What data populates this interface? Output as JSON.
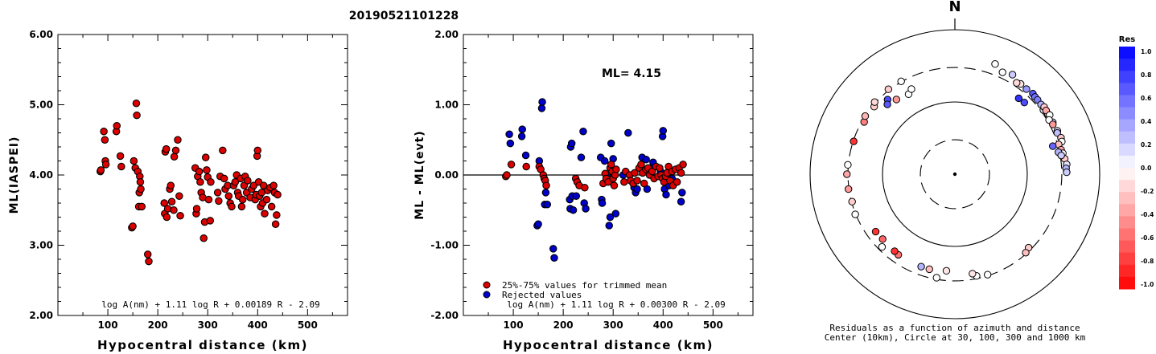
{
  "title": "20190521101228",
  "chart_data": [
    {
      "type": "scatter",
      "xlabel": "Hypocentral distance (km)",
      "ylabel": "ML(IASPEI)",
      "xlim": [
        0,
        580
      ],
      "ylim": [
        2.0,
        6.0
      ],
      "xticks": [
        "100",
        "200",
        "300",
        "400",
        "500"
      ],
      "yticks": [
        "2.00",
        "3.00",
        "4.00",
        "5.00",
        "6.00"
      ],
      "formula": "log A(nm) + 1.11 log R + 0.00189 R - 2.09",
      "marker_color": "#dd0000",
      "points": [
        [
          85,
          4.05
        ],
        [
          86,
          4.07
        ],
        [
          92,
          4.62
        ],
        [
          94,
          4.5
        ],
        [
          95,
          4.2
        ],
        [
          96,
          4.15
        ],
        [
          117,
          4.62
        ],
        [
          118,
          4.7
        ],
        [
          125,
          4.27
        ],
        [
          127,
          4.12
        ],
        [
          148,
          3.25
        ],
        [
          150,
          3.27
        ],
        [
          152,
          4.2
        ],
        [
          155,
          4.1
        ],
        [
          157,
          5.02
        ],
        [
          158,
          4.85
        ],
        [
          160,
          4.05
        ],
        [
          162,
          3.55
        ],
        [
          163,
          3.75
        ],
        [
          164,
          3.98
        ],
        [
          165,
          3.9
        ],
        [
          166,
          3.8
        ],
        [
          168,
          3.55
        ],
        [
          180,
          2.87
        ],
        [
          182,
          2.77
        ],
        [
          213,
          3.6
        ],
        [
          214,
          3.45
        ],
        [
          215,
          4.33
        ],
        [
          217,
          4.37
        ],
        [
          218,
          3.4
        ],
        [
          220,
          3.52
        ],
        [
          224,
          3.8
        ],
        [
          226,
          3.85
        ],
        [
          228,
          3.62
        ],
        [
          232,
          3.5
        ],
        [
          233,
          4.26
        ],
        [
          236,
          4.35
        ],
        [
          240,
          4.5
        ],
        [
          243,
          3.7
        ],
        [
          245,
          3.42
        ],
        [
          275,
          4.1
        ],
        [
          277,
          3.45
        ],
        [
          278,
          3.52
        ],
        [
          280,
          3.98
        ],
        [
          283,
          4.05
        ],
        [
          285,
          3.9
        ],
        [
          287,
          3.75
        ],
        [
          290,
          3.68
        ],
        [
          292,
          3.1
        ],
        [
          294,
          3.33
        ],
        [
          296,
          4.25
        ],
        [
          298,
          4.07
        ],
        [
          300,
          3.97
        ],
        [
          302,
          3.65
        ],
        [
          305,
          3.35
        ],
        [
          306,
          3.9
        ],
        [
          320,
          3.75
        ],
        [
          322,
          3.63
        ],
        [
          325,
          3.98
        ],
        [
          330,
          4.35
        ],
        [
          333,
          3.95
        ],
        [
          335,
          3.8
        ],
        [
          340,
          3.85
        ],
        [
          342,
          3.7
        ],
        [
          345,
          3.6
        ],
        [
          348,
          3.55
        ],
        [
          352,
          3.85
        ],
        [
          355,
          3.9
        ],
        [
          358,
          4.0
        ],
        [
          360,
          3.75
        ],
        [
          362,
          3.7
        ],
        [
          366,
          3.95
        ],
        [
          368,
          3.55
        ],
        [
          370,
          3.65
        ],
        [
          373,
          3.85
        ],
        [
          375,
          3.98
        ],
        [
          378,
          3.75
        ],
        [
          380,
          3.92
        ],
        [
          385,
          3.68
        ],
        [
          388,
          3.8
        ],
        [
          392,
          3.85
        ],
        [
          395,
          3.65
        ],
        [
          397,
          3.72
        ],
        [
          399,
          4.27
        ],
        [
          400,
          4.35
        ],
        [
          402,
          3.9
        ],
        [
          404,
          3.7
        ],
        [
          406,
          3.55
        ],
        [
          408,
          3.75
        ],
        [
          410,
          3.6
        ],
        [
          412,
          3.85
        ],
        [
          414,
          3.45
        ],
        [
          418,
          3.65
        ],
        [
          420,
          3.78
        ],
        [
          425,
          3.82
        ],
        [
          428,
          3.55
        ],
        [
          432,
          3.85
        ],
        [
          434,
          3.75
        ],
        [
          436,
          3.3
        ],
        [
          438,
          3.43
        ],
        [
          440,
          3.72
        ]
      ]
    },
    {
      "type": "scatter",
      "xlabel": "Hypocentral distance (km)",
      "ylabel": "ML - ML(evt)",
      "xlim": [
        0,
        580
      ],
      "ylim": [
        -2.0,
        2.0
      ],
      "xticks": [
        "100",
        "200",
        "300",
        "400",
        "500"
      ],
      "yticks": [
        "-2.00",
        "-1.00",
        "0.00",
        "1.00",
        "2.00"
      ],
      "annotation": "ML= 4.15",
      "formula": "log A(nm) + 1.11 log R + 0.00300 R - 2.09",
      "legend": [
        {
          "label": "25%-75% values for trimmed mean",
          "color": "#dd0000"
        },
        {
          "label": "Rejected values",
          "color": "#0000cc"
        }
      ],
      "points_accepted": [
        [
          85,
          -0.02
        ],
        [
          87,
          0.0
        ],
        [
          96,
          0.15
        ],
        [
          126,
          0.12
        ],
        [
          152,
          0.12
        ],
        [
          155,
          0.08
        ],
        [
          160,
          0.0
        ],
        [
          162,
          -0.05
        ],
        [
          164,
          -0.08
        ],
        [
          166,
          -0.15
        ],
        [
          225,
          -0.05
        ],
        [
          228,
          -0.1
        ],
        [
          232,
          -0.15
        ],
        [
          243,
          -0.18
        ],
        [
          280,
          -0.12
        ],
        [
          284,
          0.02
        ],
        [
          286,
          -0.05
        ],
        [
          290,
          -0.1
        ],
        [
          294,
          0.1
        ],
        [
          296,
          0.15
        ],
        [
          298,
          0.05
        ],
        [
          300,
          -0.05
        ],
        [
          302,
          -0.15
        ],
        [
          304,
          0.0
        ],
        [
          306,
          0.08
        ],
        [
          322,
          -0.1
        ],
        [
          325,
          0.05
        ],
        [
          333,
          0.0
        ],
        [
          335,
          -0.08
        ],
        [
          340,
          -0.12
        ],
        [
          343,
          0.03
        ],
        [
          348,
          -0.08
        ],
        [
          352,
          0.1
        ],
        [
          356,
          0.15
        ],
        [
          359,
          0.03
        ],
        [
          362,
          -0.12
        ],
        [
          366,
          0.08
        ],
        [
          370,
          0.1
        ],
        [
          373,
          0.0
        ],
        [
          378,
          0.05
        ],
        [
          382,
          -0.05
        ],
        [
          386,
          0.12
        ],
        [
          390,
          -0.02
        ],
        [
          393,
          0.1
        ],
        [
          396,
          0.0
        ],
        [
          399,
          -0.05
        ],
        [
          402,
          -0.1
        ],
        [
          405,
          -0.02
        ],
        [
          408,
          0.03
        ],
        [
          411,
          0.12
        ],
        [
          414,
          -0.08
        ],
        [
          418,
          0.05
        ],
        [
          420,
          -0.15
        ],
        [
          425,
          0.08
        ],
        [
          428,
          -0.1
        ],
        [
          432,
          0.1
        ],
        [
          436,
          0.03
        ],
        [
          440,
          0.15
        ]
      ],
      "points_rejected": [
        [
          92,
          0.58
        ],
        [
          94,
          0.45
        ],
        [
          117,
          0.55
        ],
        [
          118,
          0.65
        ],
        [
          125,
          0.28
        ],
        [
          148,
          -0.72
        ],
        [
          150,
          -0.7
        ],
        [
          152,
          0.2
        ],
        [
          157,
          0.95
        ],
        [
          158,
          1.04
        ],
        [
          163,
          -0.42
        ],
        [
          165,
          -0.25
        ],
        [
          168,
          -0.42
        ],
        [
          180,
          -1.05
        ],
        [
          182,
          -1.18
        ],
        [
          213,
          -0.35
        ],
        [
          214,
          -0.48
        ],
        [
          215,
          0.4
        ],
        [
          217,
          0.45
        ],
        [
          218,
          -0.3
        ],
        [
          220,
          -0.5
        ],
        [
          226,
          -0.3
        ],
        [
          236,
          0.25
        ],
        [
          240,
          0.62
        ],
        [
          242,
          -0.4
        ],
        [
          245,
          -0.48
        ],
        [
          275,
          0.25
        ],
        [
          277,
          -0.35
        ],
        [
          278,
          -0.4
        ],
        [
          283,
          0.2
        ],
        [
          288,
          0.0
        ],
        [
          292,
          -0.72
        ],
        [
          294,
          -0.6
        ],
        [
          296,
          0.45
        ],
        [
          300,
          0.23
        ],
        [
          305,
          -0.55
        ],
        [
          320,
          0.0
        ],
        [
          330,
          0.6
        ],
        [
          342,
          -0.18
        ],
        [
          345,
          -0.25
        ],
        [
          348,
          -0.2
        ],
        [
          358,
          0.25
        ],
        [
          362,
          0.05
        ],
        [
          366,
          0.22
        ],
        [
          368,
          -0.2
        ],
        [
          376,
          0.1
        ],
        [
          380,
          0.18
        ],
        [
          395,
          0.05
        ],
        [
          399,
          0.55
        ],
        [
          400,
          0.63
        ],
        [
          403,
          -0.2
        ],
        [
          406,
          -0.28
        ],
        [
          412,
          -0.15
        ],
        [
          418,
          -0.05
        ],
        [
          436,
          -0.38
        ],
        [
          438,
          -0.25
        ]
      ]
    },
    {
      "type": "scatter",
      "subtype": "polar",
      "north_label": "N",
      "caption_line1": "Residuals as a function of azimuth and distance",
      "caption_line2": "Center (10km), Circle at 30, 100, 300 and 1000 km",
      "colorbar_title": "Res",
      "colorbar_ticks": [
        "1.0",
        "0.8",
        "0.6",
        "0.4",
        "0.2",
        "0.0",
        "-0.2",
        "-0.4",
        "-0.6",
        "-0.8",
        "-1.0"
      ],
      "residual_range": [
        -1.0,
        1.0
      ],
      "points": [
        [
          20,
          420,
          0.0
        ],
        [
          25,
          360,
          0.0
        ],
        [
          30,
          390,
          0.2
        ],
        [
          36,
          350,
          -0.1
        ],
        [
          34,
          335,
          -0.15
        ],
        [
          40,
          345,
          0.4
        ],
        [
          44,
          355,
          0.65
        ],
        [
          46,
          345,
          0.55
        ],
        [
          48,
          345,
          0.5
        ],
        [
          51,
          340,
          0.3
        ],
        [
          54,
          325,
          0.1
        ],
        [
          53,
          350,
          -0.2
        ],
        [
          57,
          340,
          -0.25
        ],
        [
          55,
          345,
          -0.35
        ],
        [
          58,
          350,
          0.0
        ],
        [
          62,
          340,
          0.2
        ],
        [
          60,
          318,
          0.0
        ],
        [
          63,
          330,
          -0.4
        ],
        [
          67,
          345,
          0.15
        ],
        [
          68,
          335,
          0.25
        ],
        [
          71,
          355,
          -0.2
        ],
        [
          73,
          350,
          0.0
        ],
        [
          74,
          310,
          -0.25
        ],
        [
          77,
          320,
          -0.35
        ],
        [
          79,
          330,
          0.0
        ],
        [
          82,
          340,
          -0.2
        ],
        [
          85,
          355,
          0.1
        ],
        [
          87,
          345,
          0.3
        ],
        [
          89,
          350,
          0.2
        ],
        [
          74,
          255,
          0.6
        ],
        [
          78,
          290,
          0.3
        ],
        [
          80,
          310,
          0.2
        ],
        [
          40,
          235,
          0.8
        ],
        [
          44,
          240,
          0.7
        ],
        [
          135,
          275,
          -0.2
        ],
        [
          138,
          290,
          -0.25
        ],
        [
          162,
          290,
          0.0
        ],
        [
          168,
          275,
          0.0
        ],
        [
          190,
          285,
          0.0
        ],
        [
          170,
          250,
          -0.1
        ],
        [
          185,
          220,
          -0.1
        ],
        [
          195,
          230,
          -0.25
        ],
        [
          200,
          230,
          0.3
        ],
        [
          215,
          230,
          -0.55
        ],
        [
          218,
          225,
          -0.8
        ],
        [
          225,
          265,
          0.0
        ],
        [
          234,
          225,
          -0.8
        ],
        [
          228,
          220,
          -0.6
        ],
        [
          248,
          305,
          0.0
        ],
        [
          255,
          295,
          -0.2
        ],
        [
          262,
          305,
          -0.4
        ],
        [
          270,
          310,
          -0.35
        ],
        [
          275,
          305,
          0.0
        ],
        [
          288,
          295,
          -0.8
        ],
        [
          300,
          280,
          -0.5
        ],
        [
          303,
          300,
          -0.3
        ],
        [
          310,
          285,
          -0.2
        ],
        [
          312,
          310,
          -0.15
        ],
        [
          322,
          310,
          -0.2
        ],
        [
          330,
          305,
          0.0
        ],
        [
          322,
          205,
          -0.4
        ],
        [
          330,
          190,
          0.0
        ],
        [
          333,
          210,
          0.0
        ],
        [
          318,
          245,
          0.7
        ],
        [
          316,
          220,
          0.65
        ]
      ]
    }
  ]
}
